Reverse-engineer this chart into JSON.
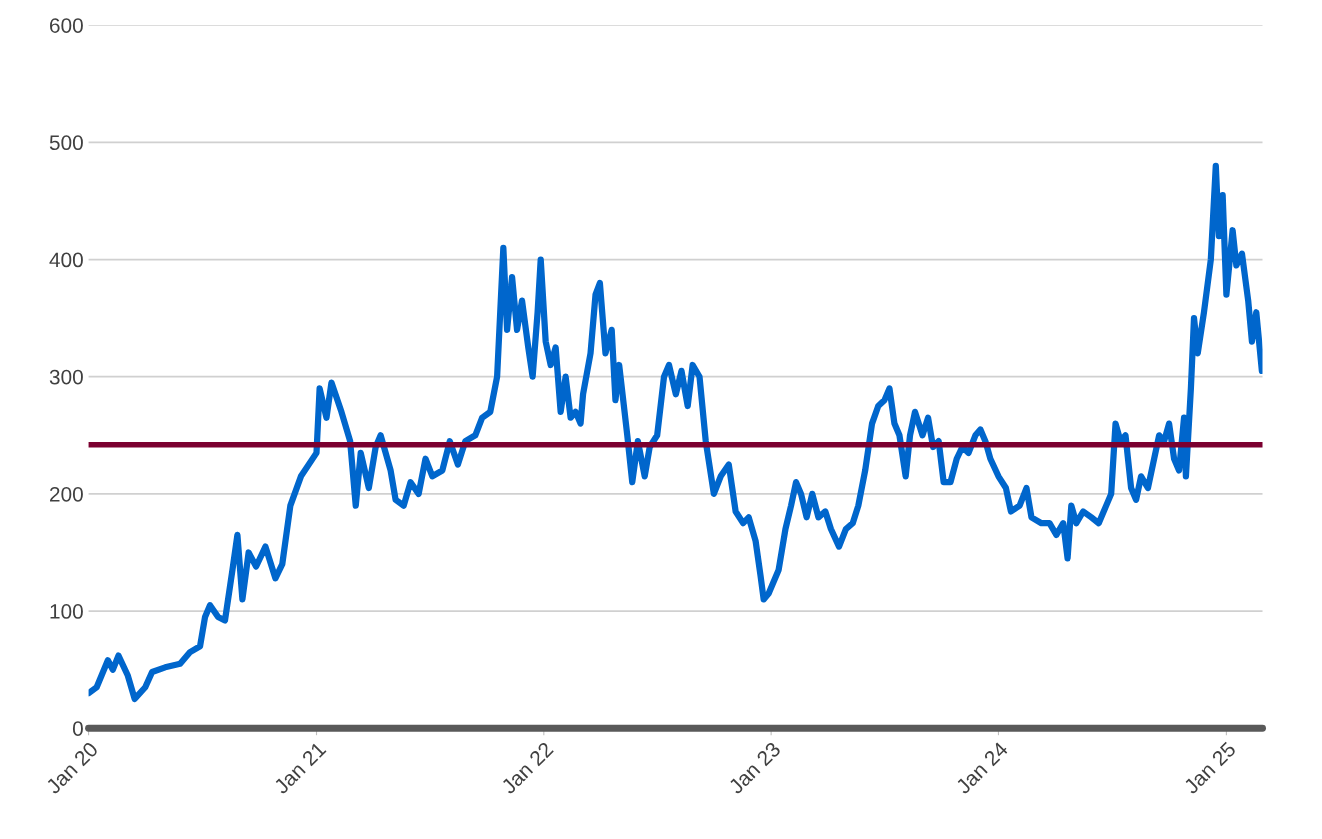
{
  "chart_data": {
    "type": "line",
    "x": [
      "2020-01-01",
      "2020-01-14",
      "2020-02-01",
      "2020-02-09",
      "2020-02-18",
      "2020-03-04",
      "2020-03-15",
      "2020-04-01",
      "2020-04-12",
      "2020-05-03",
      "2020-05-27",
      "2020-06-12",
      "2020-06-28",
      "2020-07-06",
      "2020-07-14",
      "2020-07-27",
      "2020-08-07",
      "2020-08-19",
      "2020-08-27",
      "2020-09-04",
      "2020-09-14",
      "2020-09-26",
      "2020-10-11",
      "2020-10-27",
      "2020-11-07",
      "2020-11-20",
      "2020-12-07",
      "2021-01-01",
      "2021-01-06",
      "2021-01-17",
      "2021-01-25",
      "2021-02-10",
      "2021-02-24",
      "2021-03-05",
      "2021-03-13",
      "2021-03-26",
      "2021-04-06",
      "2021-04-14",
      "2021-04-30",
      "2021-05-08",
      "2021-05-21",
      "2021-06-01",
      "2021-06-14",
      "2021-06-25",
      "2021-07-06",
      "2021-07-22",
      "2021-08-03",
      "2021-08-16",
      "2021-08-28",
      "2021-09-13",
      "2021-09-24",
      "2021-10-07",
      "2021-10-18",
      "2021-10-28",
      "2021-11-03",
      "2021-11-11",
      "2021-11-19",
      "2021-11-27",
      "2021-12-07",
      "2021-12-14",
      "2021-12-22",
      "2021-12-27",
      "2022-01-04",
      "2022-01-12",
      "2022-01-20",
      "2022-01-28",
      "2022-02-05",
      "2022-02-13",
      "2022-02-21",
      "2022-03-01",
      "2022-03-05",
      "2022-03-17",
      "2022-03-25",
      "2022-04-01",
      "2022-04-10",
      "2022-04-20",
      "2022-04-26",
      "2022-05-02",
      "2022-05-15",
      "2022-05-23",
      "2022-06-01",
      "2022-06-12",
      "2022-06-20",
      "2022-07-02",
      "2022-07-13",
      "2022-07-21",
      "2022-08-01",
      "2022-08-10",
      "2022-08-20",
      "2022-08-28",
      "2022-09-08",
      "2022-09-18",
      "2022-10-01",
      "2022-10-12",
      "2022-10-25",
      "2022-11-05",
      "2022-11-17",
      "2022-11-26",
      "2022-12-07",
      "2022-12-15",
      "2022-12-20",
      "2022-12-28",
      "2023-01-05",
      "2023-01-13",
      "2023-01-24",
      "2023-02-02",
      "2023-02-10",
      "2023-02-18",
      "2023-02-27",
      "2023-03-08",
      "2023-03-18",
      "2023-03-29",
      "2023-04-07",
      "2023-04-20",
      "2023-05-01",
      "2023-05-12",
      "2023-05-21",
      "2023-06-01",
      "2023-06-12",
      "2023-06-22",
      "2023-07-02",
      "2023-07-10",
      "2023-07-18",
      "2023-07-26",
      "2023-08-05",
      "2023-08-12",
      "2023-08-20",
      "2023-09-01",
      "2023-09-10",
      "2023-09-18",
      "2023-09-27",
      "2023-10-05",
      "2023-10-16",
      "2023-10-26",
      "2023-11-04",
      "2023-11-14",
      "2023-11-25",
      "2023-12-03",
      "2023-12-11",
      "2023-12-19",
      "2024-01-01",
      "2024-01-13",
      "2024-01-21",
      "2024-02-04",
      "2024-02-15",
      "2024-02-23",
      "2024-03-10",
      "2024-03-23",
      "2024-04-03",
      "2024-04-14",
      "2024-04-21",
      "2024-04-27",
      "2024-05-05",
      "2024-05-16",
      "2024-05-29",
      "2024-06-10",
      "2024-06-22",
      "2024-06-30",
      "2024-07-07",
      "2024-07-15",
      "2024-07-23",
      "2024-08-01",
      "2024-08-09",
      "2024-08-17",
      "2024-08-28",
      "2024-09-05",
      "2024-09-15",
      "2024-09-23",
      "2024-10-01",
      "2024-10-09",
      "2024-10-17",
      "2024-10-25",
      "2024-10-28",
      "2024-11-05",
      "2024-11-10",
      "2024-11-16",
      "2024-11-26",
      "2024-12-07",
      "2024-12-15",
      "2024-12-20",
      "2024-12-26",
      "2025-01-01",
      "2025-01-11",
      "2025-01-17",
      "2025-01-26",
      "2025-02-05",
      "2025-02-11",
      "2025-02-18",
      "2025-02-27"
    ],
    "series": [
      {
        "color": "#0066cc",
        "values": [
          30,
          35,
          58,
          50,
          62,
          45,
          25,
          35,
          48,
          52,
          55,
          65,
          70,
          95,
          105,
          95,
          92,
          135,
          165,
          110,
          150,
          138,
          155,
          128,
          140,
          190,
          215,
          235,
          290,
          265,
          295,
          270,
          245,
          190,
          235,
          205,
          240,
          250,
          220,
          195,
          190,
          210,
          200,
          230,
          215,
          220,
          245,
          225,
          245,
          250,
          265,
          270,
          300,
          410,
          340,
          385,
          340,
          365,
          325,
          300,
          355,
          400,
          330,
          310,
          325,
          270,
          300,
          265,
          270,
          260,
          285,
          320,
          370,
          380,
          320,
          340,
          280,
          310,
          250,
          210,
          245,
          215,
          240,
          250,
          300,
          310,
          285,
          305,
          275,
          310,
          300,
          245,
          200,
          215,
          225,
          185,
          175,
          180,
          160,
          130,
          110,
          115,
          125,
          135,
          170,
          190,
          210,
          200,
          180,
          200,
          180,
          185,
          170,
          155,
          170,
          175,
          190,
          220,
          260,
          275,
          280,
          290,
          260,
          250,
          215,
          250,
          270,
          250,
          265,
          240,
          245,
          210,
          210,
          230,
          240,
          235,
          250,
          255,
          245,
          230,
          215,
          205,
          185,
          190,
          205,
          180,
          175,
          175,
          165,
          175,
          145,
          190,
          175,
          185,
          180,
          175,
          190,
          200,
          260,
          245,
          250,
          205,
          195,
          215,
          205,
          225,
          250,
          245,
          260,
          230,
          220,
          265,
          215,
          290,
          350,
          320,
          355,
          400,
          480,
          420,
          455,
          370,
          425,
          395,
          405,
          365,
          330,
          355,
          305
        ]
      }
    ],
    "xlim": [
      "2020-01-01",
      "2025-02-28"
    ],
    "xticks": [
      {
        "value": "2020-01-01",
        "label": "Jan 20"
      },
      {
        "value": "2021-01-01",
        "label": "Jan 21"
      },
      {
        "value": "2022-01-01",
        "label": "Jan 22"
      },
      {
        "value": "2023-01-01",
        "label": "Jan 23"
      },
      {
        "value": "2024-01-01",
        "label": "Jan 24"
      },
      {
        "value": "2025-01-01",
        "label": "Jan 25"
      }
    ],
    "ylim": [
      0,
      600
    ],
    "yticks": [
      0,
      100,
      200,
      300,
      400,
      500,
      600
    ],
    "ref_lines": [
      {
        "axis": "y",
        "value": 242,
        "color": "#7b0030"
      }
    ],
    "grid": "y",
    "legend": false,
    "marker": "none",
    "line_style": "solid"
  }
}
